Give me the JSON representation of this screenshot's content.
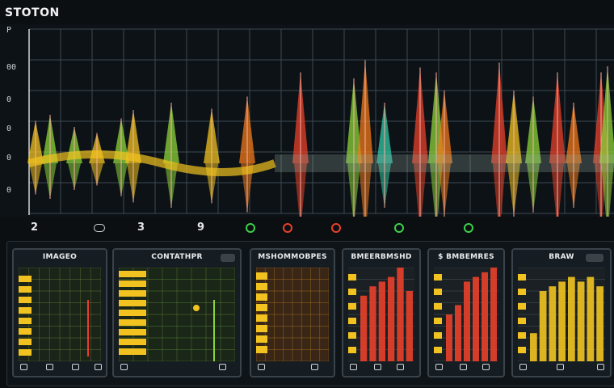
{
  "app": {
    "title": "STOTON"
  },
  "waveform": {
    "y_labels": [
      "P",
      "00",
      "0",
      "0",
      "0",
      "0"
    ],
    "colors": {
      "yellow": "#f2c320",
      "orange": "#f07a1a",
      "green": "#8cd43a",
      "red": "#e8402a",
      "teal": "#2fc7a4",
      "grid": "#3d4a52"
    }
  },
  "markers": {
    "labels": [
      "2",
      "3",
      "9"
    ],
    "dots": [
      {
        "icon": "green-ring-icon",
        "color": "#3cd04a"
      },
      {
        "icon": "red-ring-icon",
        "color": "#e8402a"
      },
      {
        "icon": "red-ring-icon",
        "color": "#e8402a"
      },
      {
        "icon": "green-ring-icon",
        "color": "#3cd04a"
      },
      {
        "icon": "green-ring-icon",
        "color": "#3cd04a"
      }
    ]
  },
  "cards": [
    {
      "title": "IMAGEO",
      "kind": "grid-yellowbars"
    },
    {
      "title": "CONTATHPR",
      "kind": "grid-green"
    },
    {
      "title": "MSHOMMOBPES",
      "kind": "grid-brown"
    },
    {
      "title": "BMEERBMSHD",
      "kind": "bars-red"
    },
    {
      "title": "$ BMBEMRES",
      "kind": "bars-red2"
    },
    {
      "title": "BRAW",
      "kind": "bars-yellow"
    }
  ]
}
